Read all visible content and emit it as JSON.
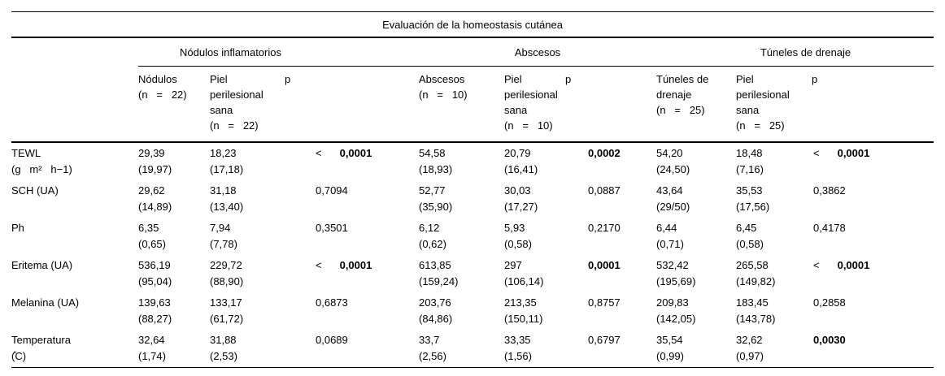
{
  "table": {
    "title": "Evaluación de la homeostasis cutánea",
    "groups": [
      {
        "label": "Nódulos inflamatorios"
      },
      {
        "label": "Abscesos"
      },
      {
        "label": "Túneles de drenaje"
      }
    ],
    "subheaders": {
      "col1": "Nódulos\n(n   =   22)",
      "col2": "Piel\nperilesional\nsana\n(n   =   22)",
      "col3": "p",
      "col4": "Abscesos\n(n   =   10)",
      "col5": "Piel\nperilesional\nsana\n(n   =   10)",
      "col6": "p",
      "col7": "Túneles de\ndrenaje\n(n   =   25)",
      "col8": "Piel\nperilesional\nsana\n(n   =   25)",
      "col9": "p"
    },
    "rows": [
      {
        "label": "TEWL\n(g   m²   h−1)",
        "cells": [
          {
            "type": "value",
            "text": "29,39\n(19,97)"
          },
          {
            "type": "value",
            "text": "18,23\n(17,18)"
          },
          {
            "type": "p",
            "prefix": "<",
            "value": "0,0001",
            "bold": true
          },
          {
            "type": "value",
            "text": "54,58\n(18,93)"
          },
          {
            "type": "value",
            "text": "20,79\n(16,41)"
          },
          {
            "type": "p",
            "prefix": "",
            "value": "0,0002",
            "bold": true
          },
          {
            "type": "value",
            "text": "54,20\n(24,50)"
          },
          {
            "type": "value",
            "text": "18,48\n(7,16)"
          },
          {
            "type": "p",
            "prefix": "<",
            "value": "0,0001",
            "bold": true
          }
        ]
      },
      {
        "label": "SCH (UA)",
        "cells": [
          {
            "type": "value",
            "text": "29,62\n(14,89)"
          },
          {
            "type": "value",
            "text": "31,18\n(13,40)"
          },
          {
            "type": "p",
            "prefix": "",
            "value": "0,7094",
            "bold": false
          },
          {
            "type": "value",
            "text": "52,77\n(35,90)"
          },
          {
            "type": "value",
            "text": "30,03\n(17,27)"
          },
          {
            "type": "p",
            "prefix": "",
            "value": "0,0887",
            "bold": false
          },
          {
            "type": "value",
            "text": "43,64\n(29/50)"
          },
          {
            "type": "value",
            "text": "35,53\n(17,56)"
          },
          {
            "type": "p",
            "prefix": "",
            "value": "0,3862",
            "bold": false
          }
        ]
      },
      {
        "label": "Ph",
        "cells": [
          {
            "type": "value",
            "text": "6,35\n(0,65)"
          },
          {
            "type": "value",
            "text": "7,94\n(7,78)"
          },
          {
            "type": "p",
            "prefix": "",
            "value": "0,3501",
            "bold": false
          },
          {
            "type": "value",
            "text": "6,12\n(0,62)"
          },
          {
            "type": "value",
            "text": "5,93\n(0,58)"
          },
          {
            "type": "p",
            "prefix": "",
            "value": "0,2170",
            "bold": false
          },
          {
            "type": "value",
            "text": "6,44\n(0,71)"
          },
          {
            "type": "value",
            "text": "6,45\n(0,58)"
          },
          {
            "type": "p",
            "prefix": "",
            "value": "0,4178",
            "bold": false
          }
        ]
      },
      {
        "label": "Eritema (UA)",
        "cells": [
          {
            "type": "value",
            "text": "536,19\n(95,04)"
          },
          {
            "type": "value",
            "text": "229,72\n(88,90)"
          },
          {
            "type": "p",
            "prefix": "<",
            "value": "0,0001",
            "bold": true
          },
          {
            "type": "value",
            "text": "613,85\n(159,24)"
          },
          {
            "type": "value",
            "text": "297\n(106,14)"
          },
          {
            "type": "p",
            "prefix": "",
            "value": "0,0001",
            "bold": true
          },
          {
            "type": "value",
            "text": "532,42\n(195,69)"
          },
          {
            "type": "value",
            "text": "265,58\n(149,82)"
          },
          {
            "type": "p",
            "prefix": "<",
            "value": "0,0001",
            "bold": true
          }
        ]
      },
      {
        "label": "Melanina (UA)",
        "cells": [
          {
            "type": "value",
            "text": "139,63\n(88,27)"
          },
          {
            "type": "value",
            "text": "133,17\n(61,72)"
          },
          {
            "type": "p",
            "prefix": "",
            "value": "0,6873",
            "bold": false
          },
          {
            "type": "value",
            "text": "203,76\n(84,86)"
          },
          {
            "type": "value",
            "text": "213,35\n(150,11)"
          },
          {
            "type": "p",
            "prefix": "",
            "value": "0,8757",
            "bold": false
          },
          {
            "type": "value",
            "text": "209,83\n(142,05)"
          },
          {
            "type": "value",
            "text": "183,45\n(143,78)"
          },
          {
            "type": "p",
            "prefix": "",
            "value": "0,2858",
            "bold": false
          }
        ]
      },
      {
        "label": "Temperatura\n(̊C)",
        "cells": [
          {
            "type": "value",
            "text": "32,64\n(1,74)"
          },
          {
            "type": "value",
            "text": "31,88\n(2,53)"
          },
          {
            "type": "p",
            "prefix": "",
            "value": "0,0689",
            "bold": false
          },
          {
            "type": "value",
            "text": "33,7\n(2,56)"
          },
          {
            "type": "value",
            "text": "33,35\n(1,56)"
          },
          {
            "type": "p",
            "prefix": "",
            "value": "0,6797",
            "bold": false
          },
          {
            "type": "value",
            "text": "35,54\n(0,99)"
          },
          {
            "type": "value",
            "text": "32,62\n(0,97)"
          },
          {
            "type": "p",
            "prefix": "",
            "value": "0,0030",
            "bold": true
          }
        ]
      }
    ]
  }
}
